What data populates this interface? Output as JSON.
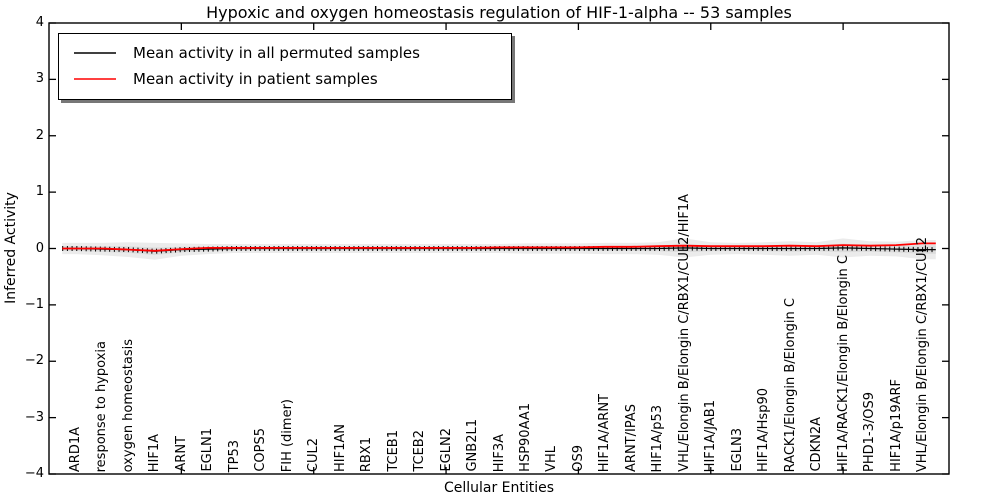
{
  "chart_data": {
    "type": "line",
    "title": "Hypoxic and oxygen homeostasis regulation of HIF-1-alpha -- 53 samples",
    "xlabel": "Cellular Entities",
    "ylabel": "Inferred Activity",
    "ylim": [
      -4,
      4
    ],
    "yticks": [
      -4,
      -3,
      -2,
      -1,
      0,
      1,
      2,
      3,
      4
    ],
    "xtick_positions": [
      5,
      10,
      15,
      20,
      25,
      30
    ],
    "grid": false,
    "legend_position": "upper left",
    "categories": [
      "ARD1A",
      "response to hypoxia",
      "oxygen homeostasis",
      "HIF1A",
      "ARNT",
      "EGLN1",
      "TP53",
      "COPS5",
      "FIH (dimer)",
      "CUL2",
      "HIF1AN",
      "RBX1",
      "TCEB1",
      "TCEB2",
      "EGLN2",
      "GNB2L1",
      "HIF3A",
      "HSP90AA1",
      "VHL",
      "OS9",
      "HIF1A/ARNT",
      "ARNT/IPAS",
      "HIF1A/p53",
      "VHL/Elongin B/Elongin C/RBX1/CUL2/HIF1A",
      "HIF1A/JAB1",
      "EGLN3",
      "HIF1A/Hsp90",
      "RACK1/Elongin B/Elongin C",
      "CDKN2A",
      "HIF1A/RACK1/Elongin B/Elongin C",
      "PHD1-3/OS9",
      "HIF1A/p19ARF",
      "VHL/Elongin B/Elongin C/RBX1/CUL2"
    ],
    "series": [
      {
        "name": "Mean activity in all permuted samples",
        "color": "#000000",
        "values": [
          0.0,
          -0.01,
          -0.02,
          -0.05,
          -0.02,
          -0.01,
          0.0,
          0.0,
          0.0,
          0.0,
          0.0,
          0.0,
          0.0,
          0.0,
          0.0,
          0.0,
          0.0,
          0.0,
          0.0,
          0.0,
          0.0,
          0.0,
          0.0,
          0.01,
          0.0,
          0.0,
          0.0,
          0.0,
          0.0,
          0.01,
          0.0,
          -0.01,
          -0.02
        ]
      },
      {
        "name": "Mean activity in patient samples",
        "color": "#ff0000",
        "values": [
          0.0,
          0.0,
          -0.02,
          -0.04,
          -0.01,
          0.01,
          0.01,
          0.01,
          0.01,
          0.01,
          0.01,
          0.01,
          0.01,
          0.01,
          0.01,
          0.01,
          0.02,
          0.02,
          0.02,
          0.02,
          0.03,
          0.03,
          0.04,
          0.05,
          0.04,
          0.04,
          0.04,
          0.05,
          0.04,
          0.06,
          0.05,
          0.06,
          0.09
        ]
      }
    ],
    "band": {
      "name": "permutation spread around permuted mean",
      "outer_color": "#ebebeb",
      "inner_color": "#dcdcdc",
      "halfwidths": [
        0.1,
        0.11,
        0.13,
        0.15,
        0.11,
        0.09,
        0.08,
        0.08,
        0.08,
        0.08,
        0.08,
        0.08,
        0.08,
        0.08,
        0.08,
        0.08,
        0.08,
        0.09,
        0.09,
        0.09,
        0.1,
        0.1,
        0.11,
        0.17,
        0.11,
        0.1,
        0.11,
        0.13,
        0.11,
        0.17,
        0.13,
        0.13,
        0.17
      ]
    }
  }
}
